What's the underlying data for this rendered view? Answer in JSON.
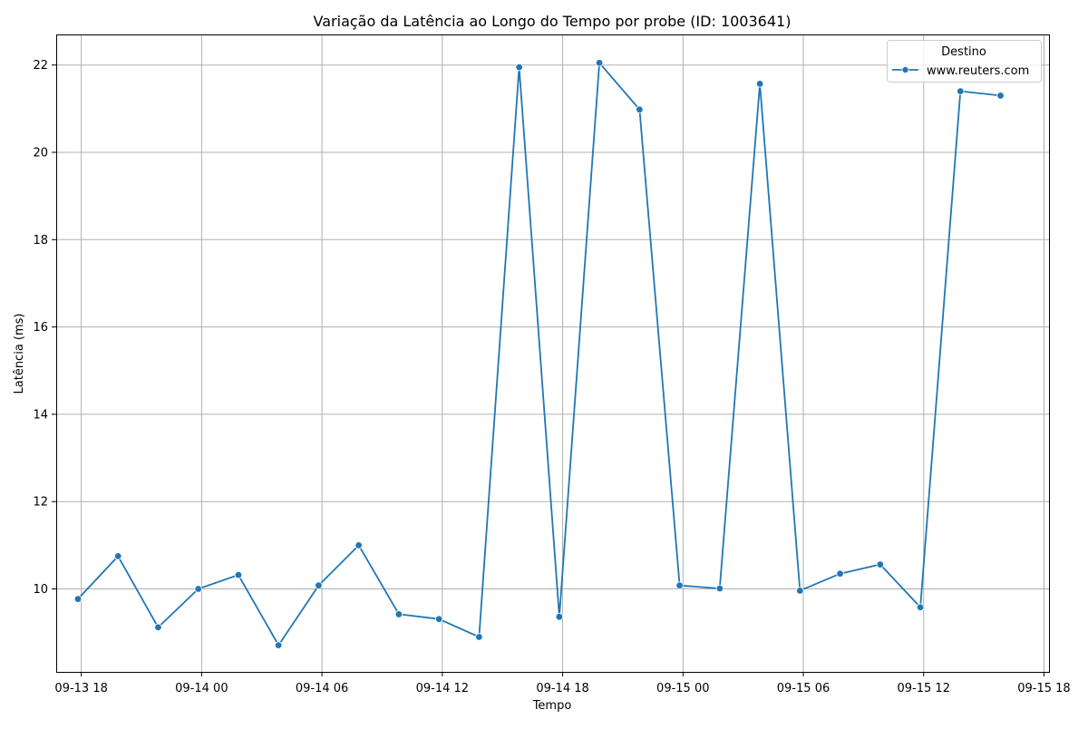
{
  "chart_data": {
    "type": "line",
    "title": "Variação da Latência ao Longo do Tempo por probe (ID: 1003641)",
    "xlabel": "Tempo",
    "ylabel": "Latência (ms)",
    "x_ticks": [
      "09-13 18",
      "09-14 00",
      "09-14 06",
      "09-14 12",
      "09-14 18",
      "09-15 00",
      "09-15 06",
      "09-15 12",
      "09-15 18"
    ],
    "y_ticks": [
      10,
      12,
      14,
      16,
      18,
      20,
      22
    ],
    "xlim": [
      "2023-09-13T16:45",
      "2023-09-15T18:15"
    ],
    "ylim": [
      8.1,
      22.7
    ],
    "grid": true,
    "legend": {
      "title": "Destino",
      "position": "top-right"
    },
    "series": [
      {
        "name": "www.reuters.com",
        "color": "#1f77b4",
        "x": [
          "2023-09-13T17:50",
          "2023-09-13T19:50",
          "2023-09-13T21:50",
          "2023-09-13T23:50",
          "2023-09-14T01:50",
          "2023-09-14T03:50",
          "2023-09-14T05:50",
          "2023-09-14T07:50",
          "2023-09-14T09:50",
          "2023-09-14T11:50",
          "2023-09-14T13:50",
          "2023-09-14T15:50",
          "2023-09-14T17:50",
          "2023-09-14T19:50",
          "2023-09-14T21:50",
          "2023-09-14T23:50",
          "2023-09-15T01:50",
          "2023-09-15T03:50",
          "2023-09-15T05:50",
          "2023-09-15T07:50",
          "2023-09-15T09:50",
          "2023-09-15T11:50",
          "2023-09-15T13:50",
          "2023-09-15T15:50"
        ],
        "y": [
          9.77,
          10.75,
          9.12,
          10.0,
          10.32,
          8.71,
          10.08,
          11.0,
          9.42,
          9.31,
          8.9,
          21.95,
          9.36,
          22.05,
          20.98,
          10.08,
          10.01,
          21.57,
          9.96,
          10.35,
          10.56,
          9.58,
          21.4,
          21.3
        ]
      }
    ]
  }
}
